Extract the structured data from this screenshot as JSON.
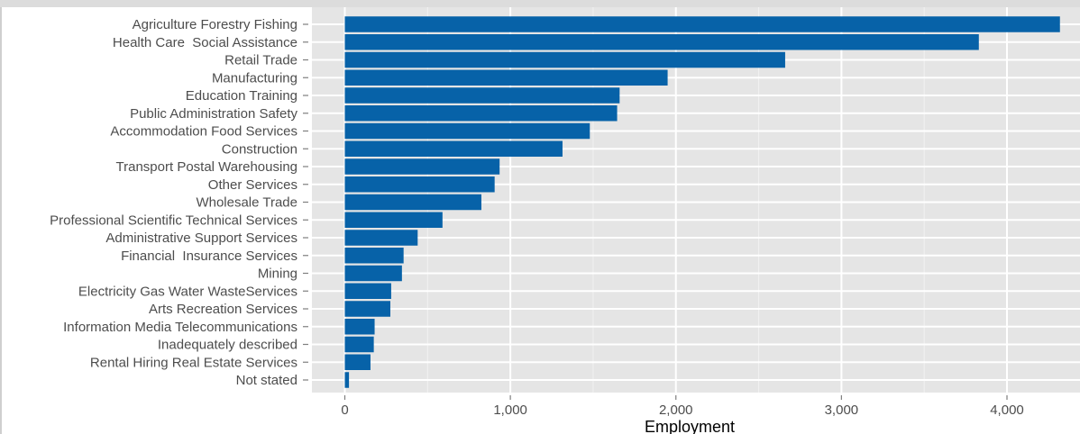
{
  "chart_data": {
    "type": "bar",
    "orientation": "horizontal",
    "title": "",
    "xlabel": "Employment",
    "ylabel": "",
    "xlim": [
      0,
      4400
    ],
    "x_ticks": [
      0,
      1000,
      2000,
      3000,
      4000
    ],
    "x_tick_labels": [
      "0",
      "1,000",
      "2,000",
      "3,000",
      "4,000"
    ],
    "grid": true,
    "bar_color": "#0762a8",
    "panel_color": "#e5e5e5",
    "categories": [
      "Agriculture Forestry Fishing",
      "Health Care  Social Assistance",
      "Retail Trade",
      "Manufacturing",
      "Education Training",
      "Public Administration Safety",
      "Accommodation Food Services",
      "Construction",
      "Transport Postal Warehousing",
      "Other Services",
      "Wholesale Trade",
      "Professional Scientific Technical Services",
      "Administrative Support Services",
      "Financial  Insurance Services",
      "Mining",
      "Electricity Gas Water WasteServices",
      "Arts Recreation Services",
      "Information Media Telecommunications",
      "Inadequately described",
      "Rental Hiring Real Estate Services",
      "Not stated"
    ],
    "values": [
      4320,
      3830,
      2660,
      1950,
      1660,
      1645,
      1480,
      1315,
      935,
      905,
      825,
      590,
      440,
      355,
      345,
      280,
      275,
      180,
      175,
      155,
      25
    ]
  }
}
